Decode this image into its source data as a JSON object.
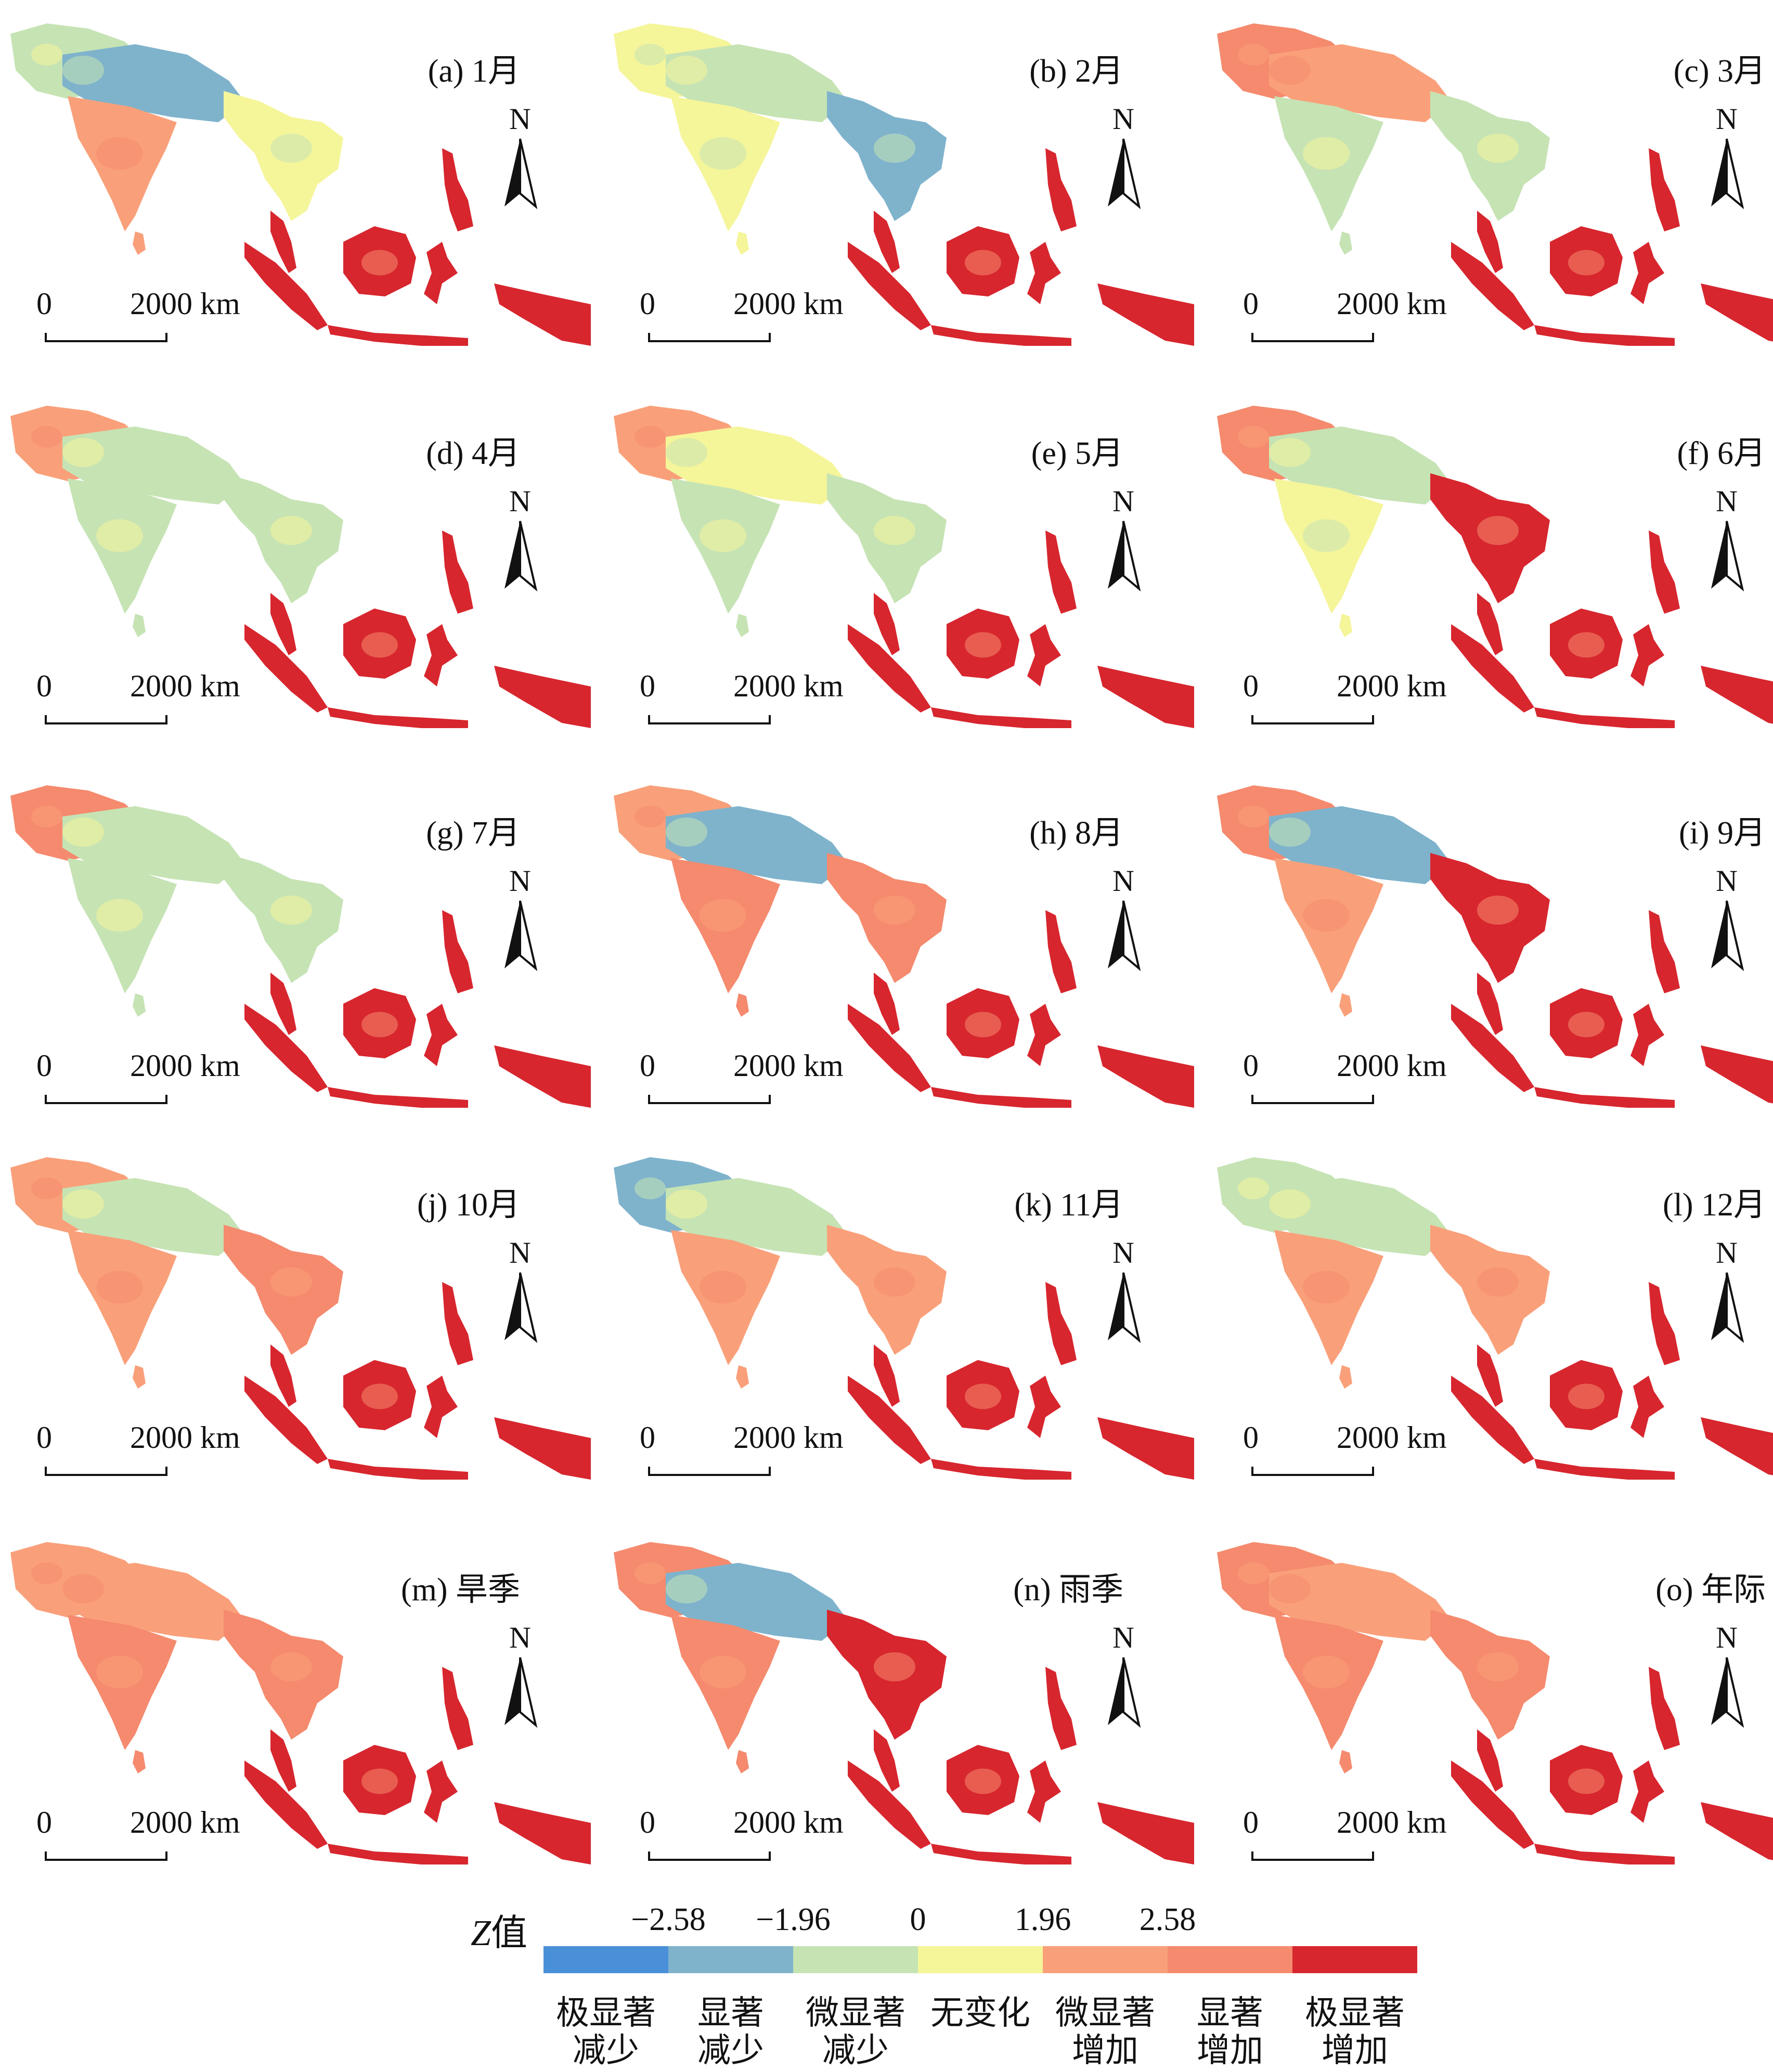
{
  "panels": [
    {
      "label": "(a) 1月",
      "pattern": "jan"
    },
    {
      "label": "(b) 2月",
      "pattern": "feb"
    },
    {
      "label": "(c) 3月",
      "pattern": "mar"
    },
    {
      "label": "(d) 4月",
      "pattern": "apr"
    },
    {
      "label": "(e) 5月",
      "pattern": "may"
    },
    {
      "label": "(f) 6月",
      "pattern": "jun"
    },
    {
      "label": "(g) 7月",
      "pattern": "jul"
    },
    {
      "label": "(h) 8月",
      "pattern": "aug"
    },
    {
      "label": "(i) 9月",
      "pattern": "sep"
    },
    {
      "label": "(j) 10月",
      "pattern": "oct"
    },
    {
      "label": "(k) 11月",
      "pattern": "nov"
    },
    {
      "label": "(l) 12月",
      "pattern": "dec"
    },
    {
      "label": "(m) 旱季",
      "pattern": "dry"
    },
    {
      "label": "(n) 雨季",
      "pattern": "wet"
    },
    {
      "label": "(o) 年际",
      "pattern": "annual"
    }
  ],
  "north_label": "N",
  "scale": {
    "start": "0",
    "end": "2000 km"
  },
  "legend": {
    "title_z": "Z",
    "title_rest": "值",
    "ticks": [
      "−2.58",
      "−1.96",
      "0",
      "1.96",
      "2.58"
    ],
    "classes": [
      {
        "line1": "极显著",
        "line2": "减少",
        "color": "#4a90d9"
      },
      {
        "line1": "显著",
        "line2": "减少",
        "color": "#7fb3cc"
      },
      {
        "line1": "微显著",
        "line2": "减少",
        "color": "#c6e3b4"
      },
      {
        "line1": "无变化",
        "line2": "",
        "color": "#f5f59a"
      },
      {
        "line1": "微显著",
        "line2": "增加",
        "color": "#f9a07a"
      },
      {
        "line1": "显著",
        "line2": "增加",
        "color": "#f58a6e"
      },
      {
        "line1": "极显著",
        "line2": "增加",
        "color": "#d7262e"
      }
    ]
  }
}
